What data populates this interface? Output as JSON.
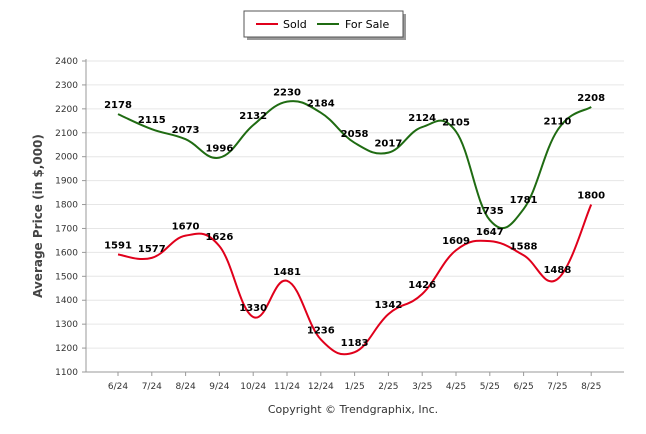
{
  "chart_data": {
    "type": "line",
    "categories": [
      "6/24",
      "7/24",
      "8/24",
      "9/24",
      "10/24",
      "11/24",
      "12/24",
      "1/25",
      "2/25",
      "3/25",
      "4/25",
      "5/25",
      "6/25",
      "7/25",
      "8/25"
    ],
    "series": [
      {
        "name": "Sold",
        "color": "#e0001b",
        "values": [
          1591,
          1577,
          1670,
          1626,
          1330,
          1481,
          1236,
          1183,
          1342,
          1426,
          1609,
          1647,
          1588,
          1488,
          1800
        ]
      },
      {
        "name": "For Sale",
        "color": "#1f6b12",
        "values": [
          2178,
          2115,
          2073,
          1996,
          2132,
          2230,
          2184,
          2058,
          2017,
          2124,
          2105,
          1735,
          1781,
          2110,
          2208
        ]
      }
    ],
    "title": "",
    "xlabel": "",
    "ylabel": "Average Price (in $,000)",
    "ylim": [
      1100,
      2400
    ],
    "yticks": [
      "1100",
      "1200",
      "1300",
      "1400",
      "1500",
      "1600",
      "1700",
      "1800",
      "1900",
      "2000",
      "2100",
      "2200",
      "2300",
      "2400"
    ],
    "grid": true,
    "legend_position": "top-center"
  },
  "footer": {
    "copyright": "Copyright © Trendgraphix, Inc."
  }
}
